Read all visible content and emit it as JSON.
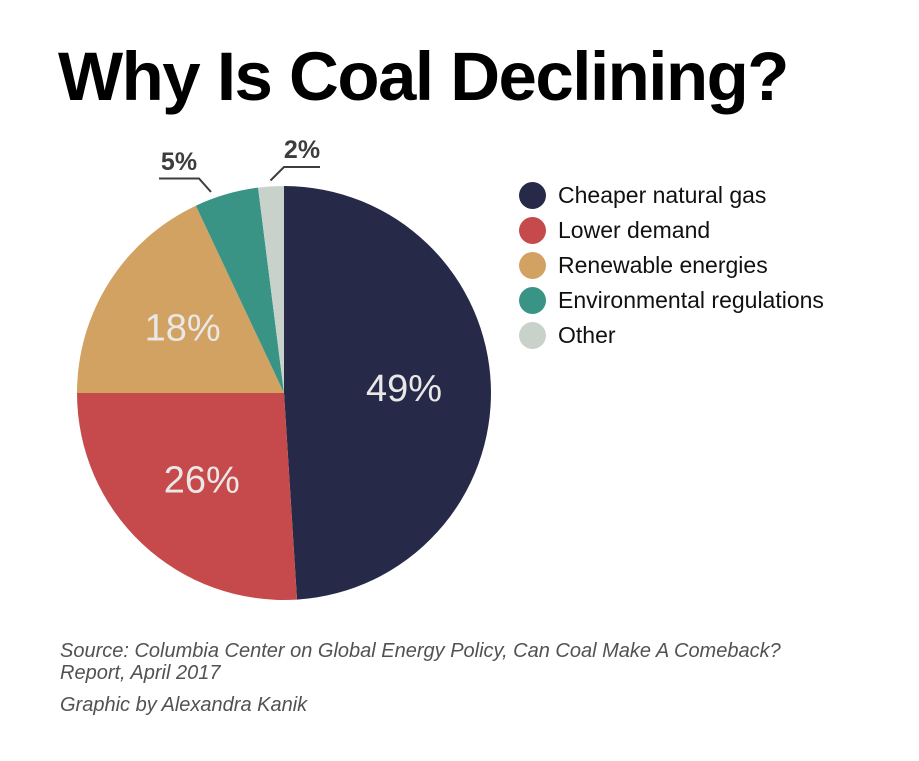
{
  "title": "Why Is Coal Declining?",
  "source": {
    "line1": "Source: Columbia Center on Global Energy Policy, Can Coal Make A Comeback?",
    "line2": "Report, April 2017"
  },
  "credit": "Graphic by Alexandra Kanik",
  "chart_data": {
    "type": "pie",
    "title": "Why Is Coal Declining?",
    "unit": "%",
    "total": 100,
    "start_angle_deg": 0,
    "direction": "clockwise",
    "legend_position": "right",
    "slices": [
      {
        "label": "Cheaper natural gas",
        "value": 49,
        "color": "#262a48"
      },
      {
        "label": "Lower demand",
        "value": 26,
        "color": "#c64a4b"
      },
      {
        "label": "Renewable energies",
        "value": 18,
        "color": "#d2a263"
      },
      {
        "label": "Environmental regulations",
        "value": 5,
        "color": "#3a9486"
      },
      {
        "label": "Other",
        "value": 2,
        "color": "#c9d2ca"
      }
    ],
    "value_labels": [
      "49%",
      "26%",
      "18%",
      "5%",
      "2%"
    ],
    "value_label_color": "#eae7e7",
    "callout_color": "#3d3d3d"
  }
}
